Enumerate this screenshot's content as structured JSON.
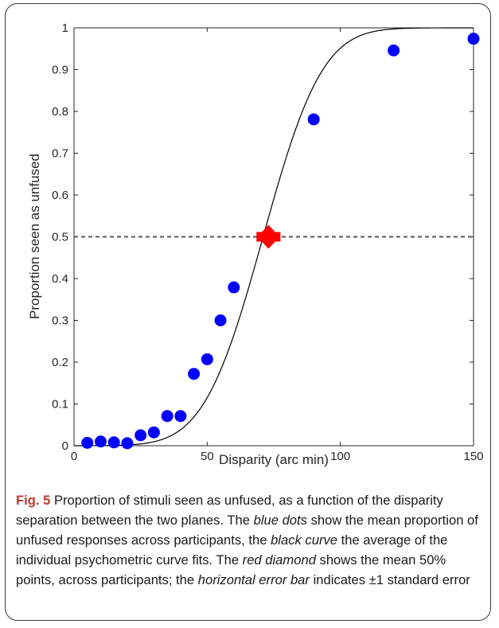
{
  "chart_data": {
    "type": "scatter",
    "xlabel": "Disparity (arc min)",
    "ylabel": "Proportion seen as unfused",
    "xlim": [
      0,
      150
    ],
    "ylim": [
      0,
      1
    ],
    "x_ticks": [
      0,
      50,
      100,
      150
    ],
    "y_ticks": [
      0,
      0.1,
      0.2,
      0.3,
      0.4,
      0.5,
      0.6,
      0.7,
      0.8,
      0.9,
      1
    ],
    "grid": false,
    "series": [
      {
        "kind": "points",
        "color": "#0000ff",
        "x": [
          5,
          10,
          15,
          20,
          25,
          30,
          35,
          40,
          45,
          50,
          55,
          60,
          90,
          120,
          150
        ],
        "y": [
          0.007,
          0.01,
          0.008,
          0.006,
          0.025,
          0.032,
          0.071,
          0.071,
          0.172,
          0.207,
          0.3,
          0.379,
          0.781,
          0.946,
          0.974
        ]
      },
      {
        "kind": "fitted-curve",
        "color": "#000000",
        "model": "cumulative-gaussian",
        "mu": 71,
        "sigma": 17.5
      },
      {
        "kind": "reference-line",
        "color": "#5a5a5a",
        "y": 0.5
      },
      {
        "kind": "diamond-with-error-bar",
        "color": "#ff0000",
        "x": 73,
        "y": 0.5,
        "x_error": 4.5
      }
    ]
  },
  "caption": {
    "label": "Fig. 5",
    "parts": [
      " Proportion of stimuli seen as unfused, as a function of the disparity separation between the two planes. The ",
      "blue dots",
      " show the mean proportion of unfused responses across participants, the ",
      "black curve",
      " the average of the individual psychometric curve fits. The ",
      "red diamond",
      " shows the mean 50% points, across participants; the ",
      "horizontal error bar",
      " indicates ±1 standard error"
    ]
  }
}
